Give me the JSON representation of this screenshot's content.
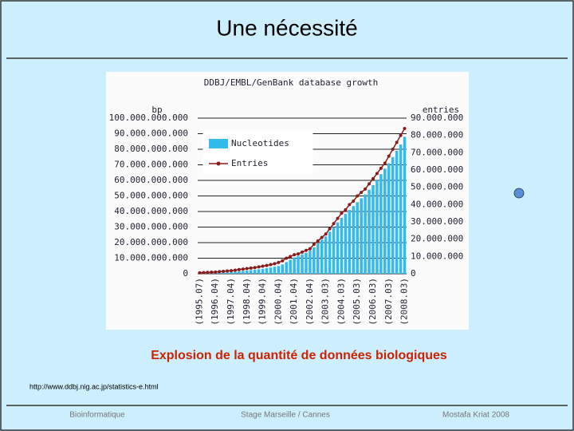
{
  "slide": {
    "title": "Une nécessité",
    "caption": "Explosion de la quantité de données biologiques",
    "url": "http://www.ddbj.nig.ac.jp/statistics-e.html",
    "footer": [
      "Bioinformatique",
      "Stage Marseille / Cannes",
      "Mostafa Kriat 2008"
    ]
  },
  "chart_data": {
    "type": "bar",
    "title": "DDBJ/EMBL/GenBank database growth",
    "y_label": "bp",
    "y2_label": "entries",
    "categories": [
      "(1995.07)",
      null,
      null,
      null,
      "(1996.04)",
      null,
      null,
      null,
      "(1997.04)",
      null,
      null,
      null,
      "(1998.04)",
      null,
      null,
      null,
      "(1999.04)",
      null,
      null,
      null,
      "(2000.04)",
      null,
      null,
      null,
      "(2001.04)",
      null,
      null,
      null,
      "(2002.04)",
      null,
      null,
      null,
      "(2003.03)",
      null,
      null,
      null,
      "(2004.03)",
      null,
      null,
      null,
      "(2005.03)",
      null,
      null,
      null,
      "(2006.03)",
      null,
      null,
      null,
      "(2007.03)",
      null,
      null,
      null,
      "(2008.03)"
    ],
    "series": [
      {
        "name": "Nucleotides",
        "type": "bar",
        "color": "#33bbee",
        "values": [
          400000000,
          450000000,
          500000000,
          600000000,
          700000000,
          800000000,
          900000000,
          1000000000,
          1200000000,
          1400000000,
          1600000000,
          1800000000,
          2000000000,
          2300000000,
          2600000000,
          2900000000,
          3200000000,
          3600000000,
          4000000000,
          4500000000,
          5000000000,
          6000000000,
          7500000000,
          9000000000,
          10500000000,
          11500000000,
          12500000000,
          13500000000,
          15000000000,
          17000000000,
          19500000000,
          22000000000,
          24000000000,
          27000000000,
          30000000000,
          33000000000,
          36000000000,
          38500000000,
          41000000000,
          43500000000,
          46000000000,
          48500000000,
          51000000000,
          54000000000,
          57000000000,
          60500000000,
          64000000000,
          67500000000,
          71000000000,
          75000000000,
          79000000000,
          83000000000,
          88000000000
        ]
      },
      {
        "name": "Entries",
        "type": "line",
        "axis": "y2",
        "color": "#8b1a1a",
        "values": [
          600000,
          700000,
          800000,
          900000,
          1000000,
          1200000,
          1400000,
          1600000,
          1800000,
          2100000,
          2400000,
          2700000,
          3000000,
          3300000,
          3600000,
          4000000,
          4400000,
          4800000,
          5300000,
          5800000,
          6500000,
          7500000,
          9000000,
          10000000,
          11000000,
          11500000,
          12500000,
          13500000,
          14500000,
          17000000,
          19000000,
          21000000,
          23000000,
          26000000,
          29000000,
          32000000,
          35000000,
          37000000,
          40000000,
          42000000,
          45000000,
          47000000,
          49000000,
          52000000,
          55000000,
          58000000,
          61000000,
          64000000,
          68000000,
          72000000,
          76000000,
          80000000,
          84000000
        ]
      }
    ],
    "ylim": [
      0,
      100000000000
    ],
    "yticks": [
      0,
      {
        "value": 10000000000,
        "label": "10.000.000.000"
      },
      {
        "value": 20000000000,
        "label": "20.000.000.000"
      },
      {
        "value": 30000000000,
        "label": "30.000.000.000"
      },
      {
        "value": 40000000000,
        "label": "40.000.000.000"
      },
      {
        "value": 50000000000,
        "label": "50.000.000.000"
      },
      {
        "value": 60000000000,
        "label": "60.000.000.000"
      },
      {
        "value": 70000000000,
        "label": "70.000.000.000"
      },
      {
        "value": 80000000000,
        "label": "80.000.000.000"
      },
      {
        "value": 90000000000,
        "label": "90.000.000.000"
      },
      {
        "value": 100000000000,
        "label": "100.000.000.000"
      }
    ],
    "y2lim": [
      0,
      90000000
    ],
    "y2ticks": [
      0,
      {
        "value": 10000000,
        "label": "10.000.000"
      },
      {
        "value": 20000000,
        "label": "20.000.000"
      },
      {
        "value": 30000000,
        "label": "30.000.000"
      },
      {
        "value": 40000000,
        "label": "40.000.000"
      },
      {
        "value": 50000000,
        "label": "50.000.000"
      },
      {
        "value": 60000000,
        "label": "60.000.000"
      },
      {
        "value": 70000000,
        "label": "70.000.000"
      },
      {
        "value": 80000000,
        "label": "80.000.000"
      },
      {
        "value": 90000000,
        "label": "90.000.000"
      }
    ],
    "grid": true,
    "legend": "upper left"
  }
}
